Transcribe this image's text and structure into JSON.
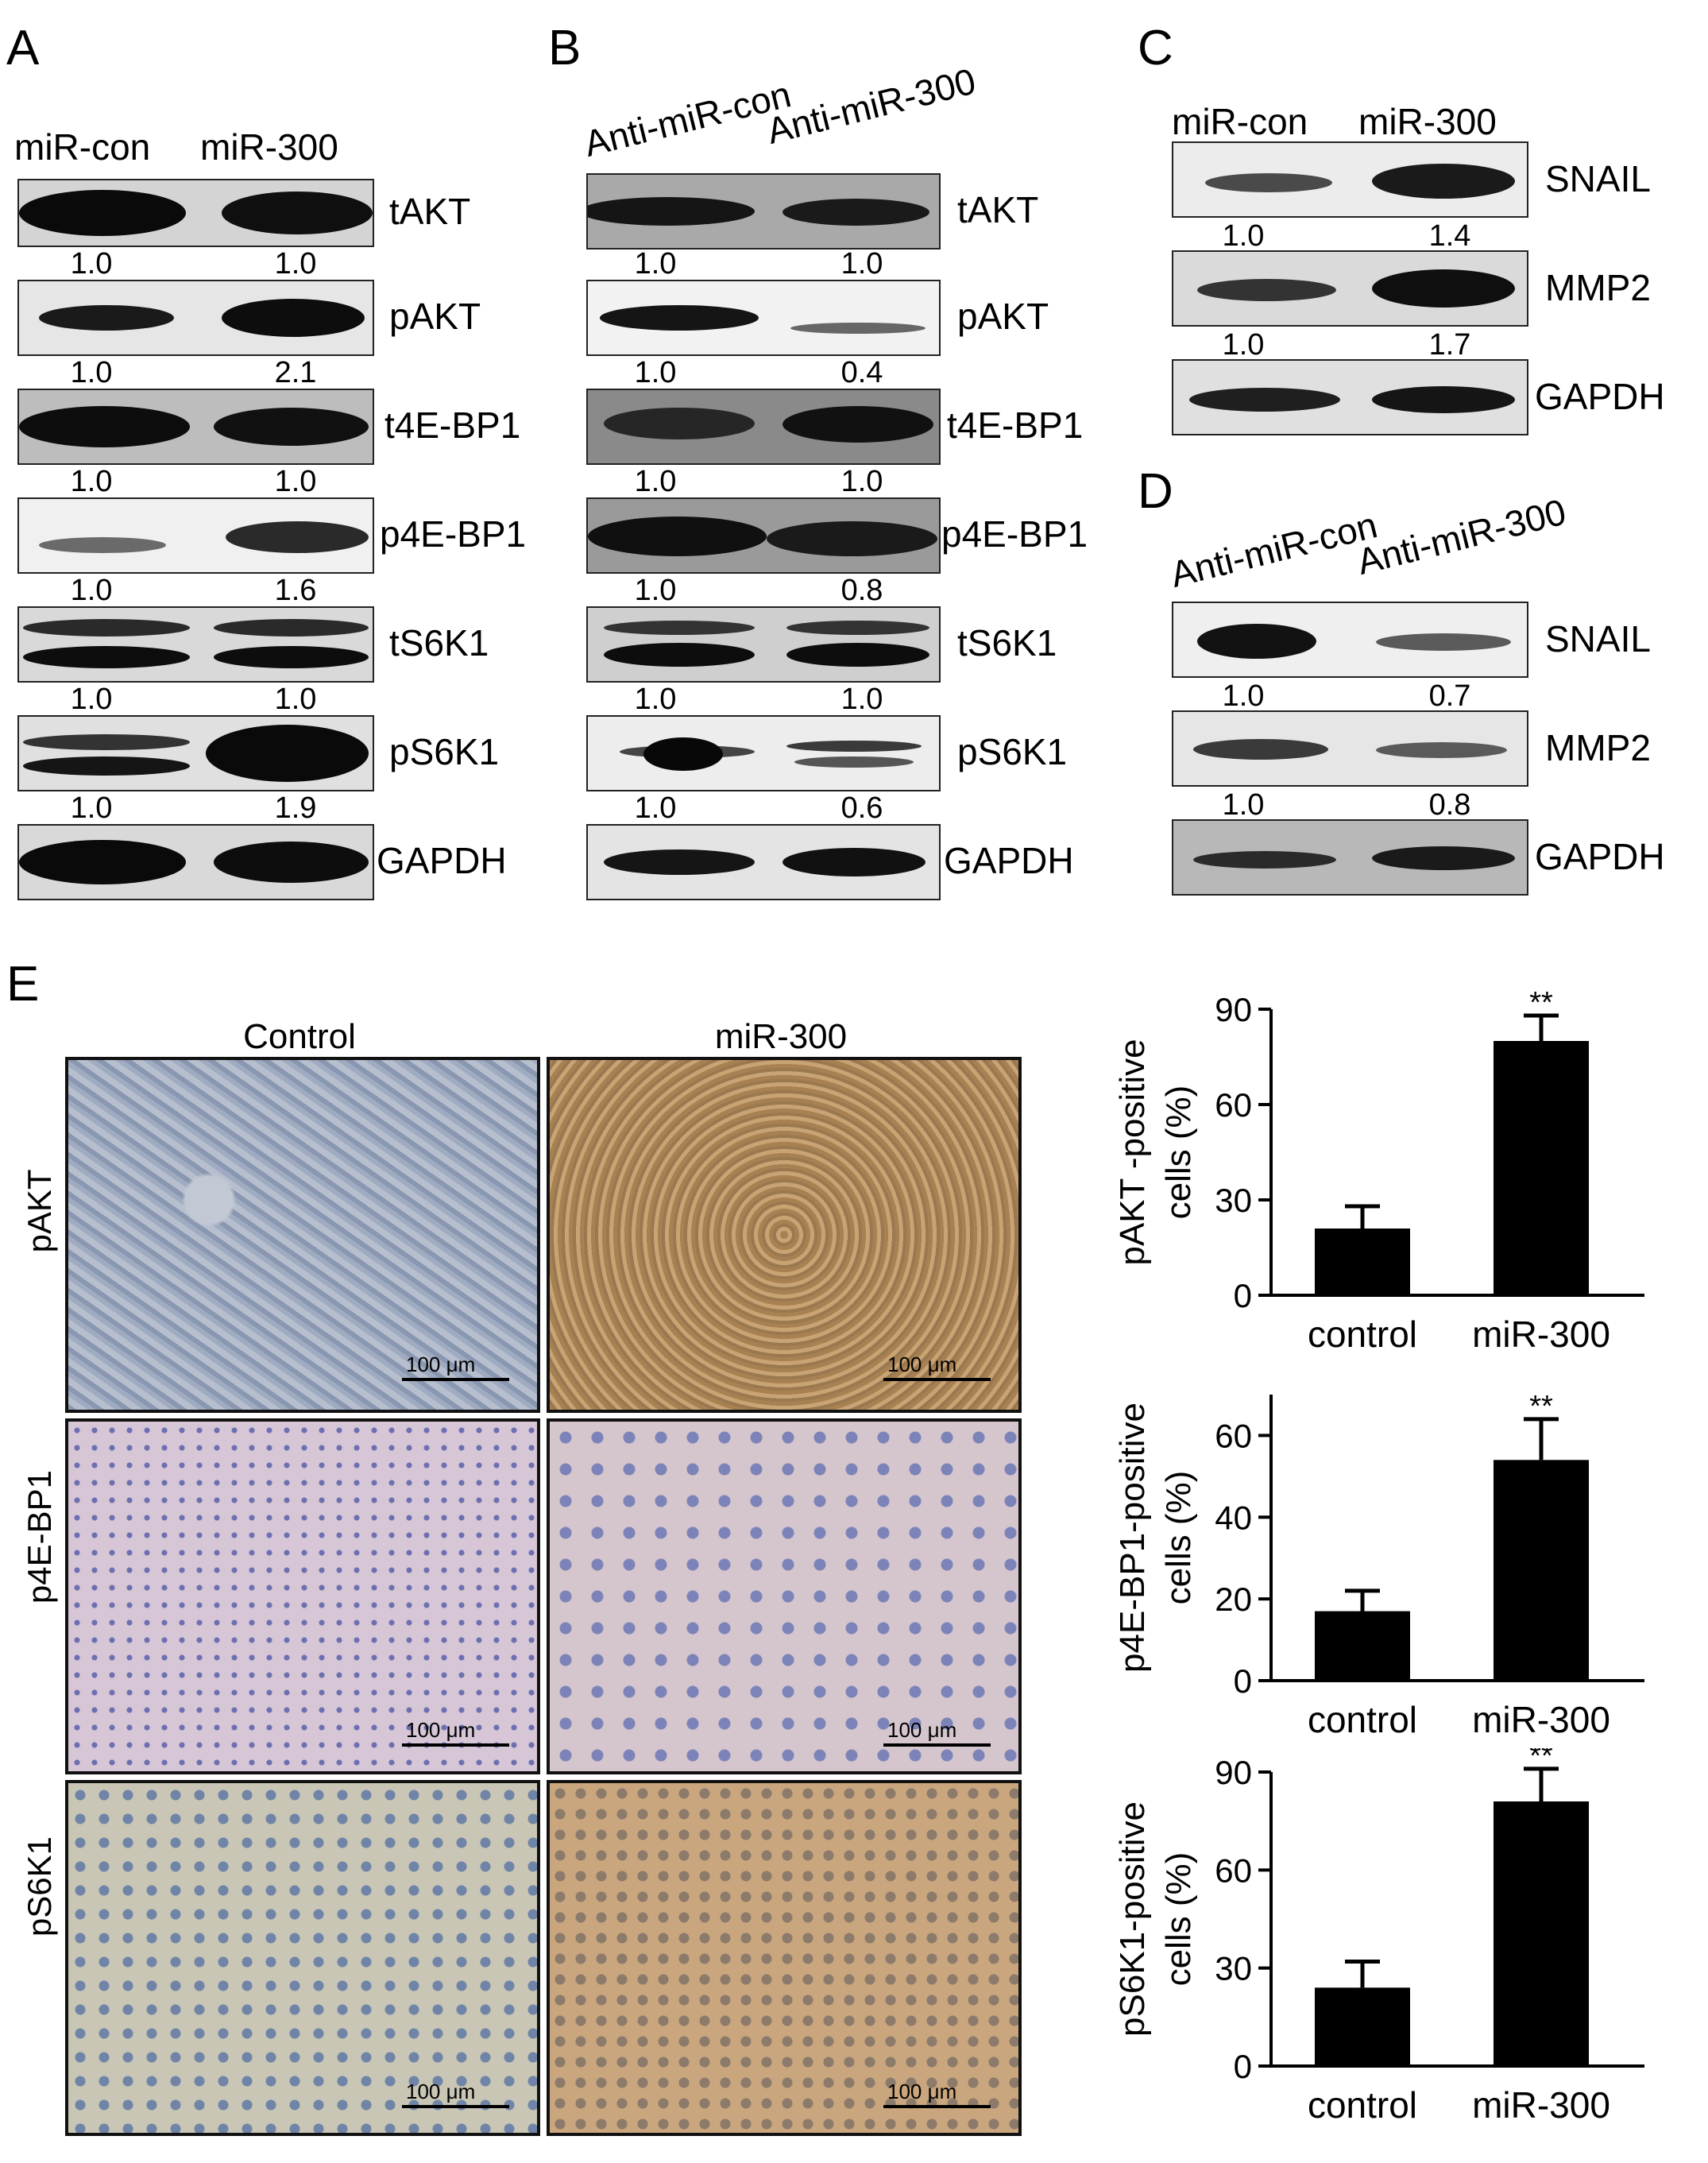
{
  "panels": {
    "A": {
      "letter": "A",
      "lanes": [
        "miR-con",
        "miR-300"
      ],
      "blots": [
        {
          "protein": "tAKT",
          "quant": [
            "1.0",
            "1.0"
          ]
        },
        {
          "protein": "pAKT",
          "quant": [
            "1.0",
            "2.1"
          ]
        },
        {
          "protein": "t4E-BP1",
          "quant": [
            "1.0",
            "1.0"
          ]
        },
        {
          "protein": "p4E-BP1",
          "quant": [
            "1.0",
            "1.6"
          ]
        },
        {
          "protein": "tS6K1",
          "quant": [
            "1.0",
            "1.0"
          ]
        },
        {
          "protein": "pS6K1",
          "quant": [
            "1.0",
            "1.9"
          ]
        },
        {
          "protein": "GAPDH",
          "quant": null
        }
      ]
    },
    "B": {
      "letter": "B",
      "lanes": [
        "Anti-miR-con",
        "Anti-miR-300"
      ],
      "blots": [
        {
          "protein": "tAKT",
          "quant": [
            "1.0",
            "1.0"
          ]
        },
        {
          "protein": "pAKT",
          "quant": [
            "1.0",
            "0.4"
          ]
        },
        {
          "protein": "t4E-BP1",
          "quant": [
            "1.0",
            "1.0"
          ]
        },
        {
          "protein": "p4E-BP1",
          "quant": [
            "1.0",
            "0.8"
          ]
        },
        {
          "protein": "tS6K1",
          "quant": [
            "1.0",
            "1.0"
          ]
        },
        {
          "protein": "pS6K1",
          "quant": [
            "1.0",
            "0.6"
          ]
        },
        {
          "protein": "GAPDH",
          "quant": null
        }
      ]
    },
    "C": {
      "letter": "C",
      "lanes": [
        "miR-con",
        "miR-300"
      ],
      "blots": [
        {
          "protein": "SNAIL",
          "quant": [
            "1.0",
            "1.4"
          ]
        },
        {
          "protein": "MMP2",
          "quant": [
            "1.0",
            "1.7"
          ]
        },
        {
          "protein": "GAPDH",
          "quant": null
        }
      ]
    },
    "D": {
      "letter": "D",
      "lanes": [
        "Anti-miR-con",
        "Anti-miR-300"
      ],
      "blots": [
        {
          "protein": "SNAIL",
          "quant": [
            "1.0",
            "0.7"
          ]
        },
        {
          "protein": "MMP2",
          "quant": [
            "1.0",
            "0.8"
          ]
        },
        {
          "protein": "GAPDH",
          "quant": null
        }
      ]
    },
    "E": {
      "letter": "E",
      "columns": [
        "Control",
        "miR-300"
      ],
      "rows": [
        "pAKT",
        "p4E-BP1",
        "pS6K1"
      ],
      "scale_bar": "100 μm"
    }
  },
  "chart_data": [
    {
      "type": "bar",
      "categories": [
        "control",
        "miR-300"
      ],
      "values": [
        21,
        80
      ],
      "errors": [
        7,
        8
      ],
      "significance": [
        "",
        "**"
      ],
      "ylabel": "pAKT -positive cells (%)",
      "ylabel_lines": [
        "pAKT -positive",
        "cells (%)"
      ],
      "ylim": [
        0,
        90
      ],
      "yticks": [
        0,
        30,
        60,
        90
      ]
    },
    {
      "type": "bar",
      "categories": [
        "control",
        "miR-300"
      ],
      "values": [
        17,
        54
      ],
      "errors": [
        5,
        10
      ],
      "significance": [
        "",
        "**"
      ],
      "ylabel": "p4E-BP1-positive cells (%)",
      "ylabel_lines": [
        "p4E-BP1-positive",
        "cells (%)"
      ],
      "ylim": [
        0,
        70
      ],
      "yticks": [
        0,
        20,
        40,
        60
      ]
    },
    {
      "type": "bar",
      "categories": [
        "control",
        "miR-300"
      ],
      "values": [
        24,
        81
      ],
      "errors": [
        8,
        10
      ],
      "significance": [
        "",
        "**"
      ],
      "ylabel": "pS6K1-positive cells (%)",
      "ylabel_lines": [
        "pS6K1-positive",
        "cells (%)"
      ],
      "ylim": [
        0,
        90
      ],
      "yticks": [
        0,
        30,
        60,
        90
      ]
    }
  ],
  "colors": {
    "bar": "#000000",
    "blot_bg": "#e6e6e6",
    "band": "#111111",
    "control_tissue": "#9aa8bf",
    "mir300_tissue": "#b3926a",
    "p4e_tissue": "#cfc0d2"
  }
}
